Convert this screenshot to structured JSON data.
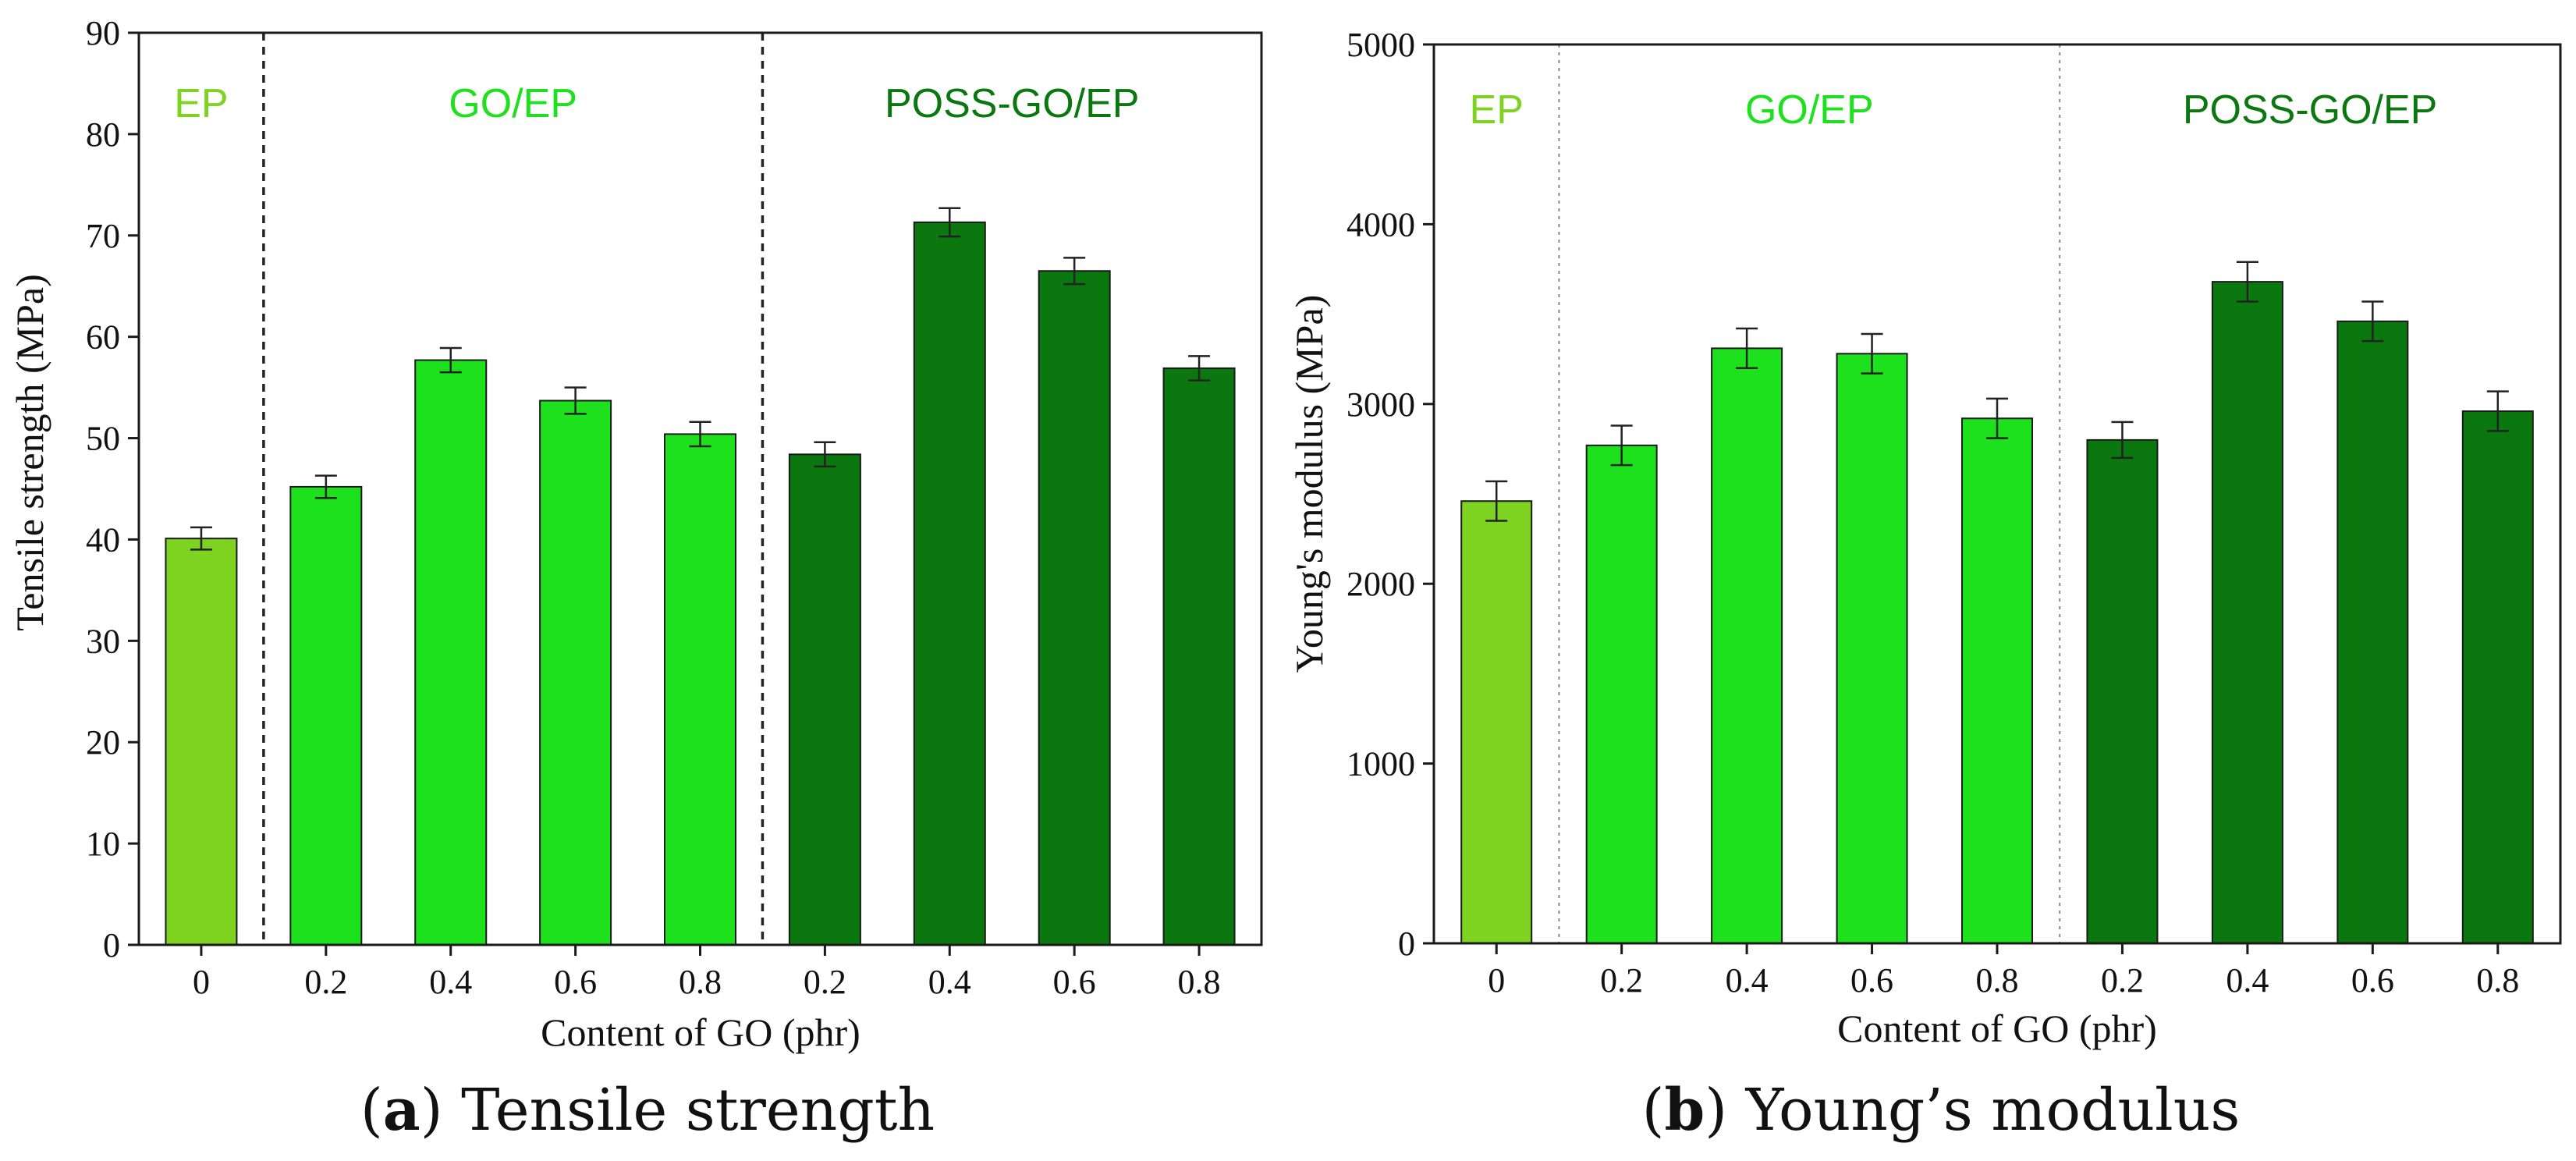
{
  "chart_data": [
    {
      "type": "bar",
      "panel": "a",
      "xlabel": "Content of GO (phr)",
      "ylabel": "Tensile strength (MPa)",
      "ylim": [
        0,
        90
      ],
      "yticks": [
        "0",
        "10",
        "20",
        "30",
        "40",
        "50",
        "60",
        "70",
        "80",
        "90"
      ],
      "categories": [
        "0",
        "0.2",
        "0.4",
        "0.6",
        "0.8",
        "0.2",
        "0.4",
        "0.6",
        "0.8"
      ],
      "groups": [
        {
          "label": "EP",
          "color": "#7ed321",
          "count": 1
        },
        {
          "label": "GO/EP",
          "color": "#1ee11e",
          "count": 4
        },
        {
          "label": "POSS-GO/EP",
          "color": "#0a780f",
          "count": 4
        }
      ],
      "values": [
        40.1,
        45.2,
        57.7,
        53.7,
        50.4,
        48.4,
        71.3,
        66.5,
        56.9
      ],
      "errors": [
        1.1,
        1.1,
        1.2,
        1.3,
        1.2,
        1.2,
        1.4,
        1.3,
        1.2
      ],
      "divider_style": "dashed",
      "caption_prefix": "(",
      "caption_bold": "a",
      "caption_text": ") Tensile strength"
    },
    {
      "type": "bar",
      "panel": "b",
      "xlabel": "Content of GO (phr)",
      "ylabel": "Young's modulus (MPa)",
      "ylim": [
        0,
        5000
      ],
      "yticks": [
        "0",
        "1000",
        "2000",
        "3000",
        "4000",
        "5000"
      ],
      "categories": [
        "0",
        "0.2",
        "0.4",
        "0.6",
        "0.8",
        "0.2",
        "0.4",
        "0.6",
        "0.8"
      ],
      "groups": [
        {
          "label": "EP",
          "color": "#7ed321",
          "count": 1
        },
        {
          "label": "GO/EP",
          "color": "#1ee11e",
          "count": 4
        },
        {
          "label": "POSS-GO/EP",
          "color": "#0a780f",
          "count": 4
        }
      ],
      "values": [
        2460,
        2770,
        3310,
        3280,
        2920,
        2800,
        3680,
        3460,
        2960
      ],
      "errors": [
        110,
        110,
        110,
        110,
        110,
        100,
        110,
        110,
        110
      ],
      "divider_style": "dotted",
      "caption_prefix": "(",
      "caption_bold": "b",
      "caption_text": ") Young’s modulus"
    }
  ]
}
